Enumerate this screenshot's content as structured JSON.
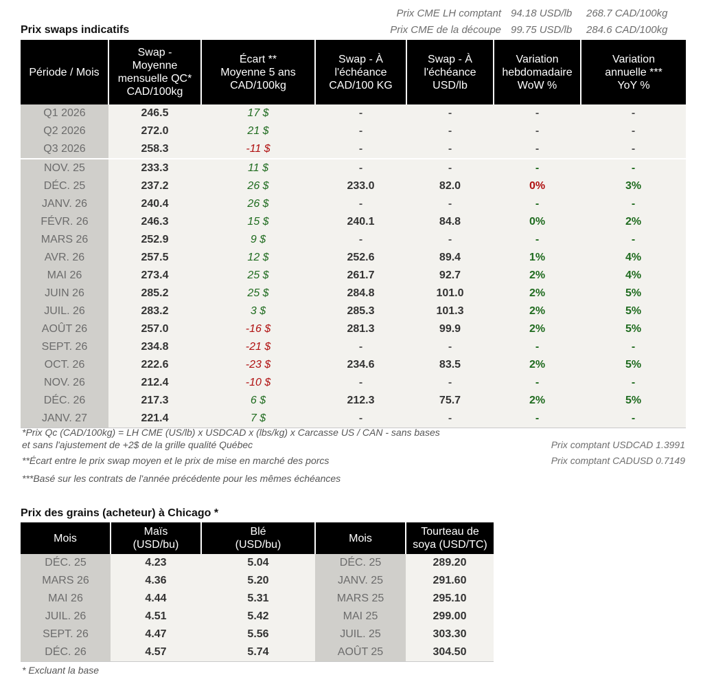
{
  "cme": [
    {
      "label": "Prix CME LH comptant",
      "usd": "94.18 USD/lb",
      "cad": "268.7 CAD/100kg"
    },
    {
      "label": "Prix CME de la découpe",
      "usd": "99.75 USD/lb",
      "cad": "284.6 CAD/100kg"
    }
  ],
  "swaps": {
    "title": "Prix swaps indicatifs",
    "headers": [
      "Période / Mois",
      "Swap -\nMoyenne\nmensuelle QC*\nCAD/100kg",
      "Écart **\nMoyenne 5 ans\nCAD/100kg",
      "Swap - À\nl'échéance\nCAD/100 KG",
      "Swap - À\nl'échéance\nUSD/lb",
      "Variation\nhebdomadaire\nWoW %",
      "Variation\nannuelle ***\nYoY %"
    ],
    "rows": [
      {
        "period": "Q1 2026",
        "swap": "246.5",
        "ecart": "17 $",
        "ecart_sign": "pos",
        "cad": "-",
        "usd": "-",
        "wow": "-",
        "wow_c": "dash",
        "yoy": "-",
        "yoy_c": "dash"
      },
      {
        "period": "Q2 2026",
        "swap": "272.0",
        "ecart": "21 $",
        "ecart_sign": "pos",
        "cad": "-",
        "usd": "-",
        "wow": "-",
        "wow_c": "dash",
        "yoy": "-",
        "yoy_c": "dash"
      },
      {
        "period": "Q3 2026",
        "swap": "258.3",
        "ecart": "-11 $",
        "ecart_sign": "neg",
        "cad": "-",
        "usd": "-",
        "wow": "-",
        "wow_c": "dash",
        "yoy": "-",
        "yoy_c": "dash"
      },
      {
        "period": "NOV. 25",
        "swap": "233.3",
        "ecart": "11 $",
        "ecart_sign": "pos",
        "cad": "-",
        "usd": "-",
        "wow": "-",
        "wow_c": "gdash",
        "yoy": "-",
        "yoy_c": "gdash",
        "sep": true
      },
      {
        "period": "DÉC. 25",
        "swap": "237.2",
        "ecart": "26 $",
        "ecart_sign": "pos",
        "cad": "233.0",
        "usd": "82.0",
        "wow": "0%",
        "wow_c": "neg",
        "yoy": "3%",
        "yoy_c": "pos"
      },
      {
        "period": "JANV. 26",
        "swap": "240.4",
        "ecart": "26 $",
        "ecart_sign": "pos",
        "cad": "-",
        "usd": "-",
        "wow": "-",
        "wow_c": "gdash",
        "yoy": "-",
        "yoy_c": "gdash"
      },
      {
        "period": "FÉVR. 26",
        "swap": "246.3",
        "ecart": "15 $",
        "ecart_sign": "pos",
        "cad": "240.1",
        "usd": "84.8",
        "wow": "0%",
        "wow_c": "pos",
        "yoy": "2%",
        "yoy_c": "pos"
      },
      {
        "period": "MARS 26",
        "swap": "252.9",
        "ecart": "9 $",
        "ecart_sign": "pos",
        "cad": "-",
        "usd": "-",
        "wow": "-",
        "wow_c": "gdash",
        "yoy": "-",
        "yoy_c": "gdash"
      },
      {
        "period": "AVR. 26",
        "swap": "257.5",
        "ecart": "12 $",
        "ecart_sign": "pos",
        "cad": "252.6",
        "usd": "89.4",
        "wow": "1%",
        "wow_c": "pos",
        "yoy": "4%",
        "yoy_c": "pos"
      },
      {
        "period": "MAI 26",
        "swap": "273.4",
        "ecart": "25 $",
        "ecart_sign": "pos",
        "cad": "261.7",
        "usd": "92.7",
        "wow": "2%",
        "wow_c": "pos",
        "yoy": "4%",
        "yoy_c": "pos"
      },
      {
        "period": "JUIN 26",
        "swap": "285.2",
        "ecart": "25 $",
        "ecart_sign": "pos",
        "cad": "284.8",
        "usd": "101.0",
        "wow": "2%",
        "wow_c": "pos",
        "yoy": "5%",
        "yoy_c": "pos"
      },
      {
        "period": "JUIL. 26",
        "swap": "283.2",
        "ecart": "3 $",
        "ecart_sign": "pos",
        "cad": "285.3",
        "usd": "101.3",
        "wow": "2%",
        "wow_c": "pos",
        "yoy": "5%",
        "yoy_c": "pos"
      },
      {
        "period": "AOÛT 26",
        "swap": "257.0",
        "ecart": "-16 $",
        "ecart_sign": "neg",
        "cad": "281.3",
        "usd": "99.9",
        "wow": "2%",
        "wow_c": "pos",
        "yoy": "5%",
        "yoy_c": "pos"
      },
      {
        "period": "SEPT. 26",
        "swap": "234.8",
        "ecart": "-21 $",
        "ecart_sign": "neg",
        "cad": "-",
        "usd": "-",
        "wow": "-",
        "wow_c": "gdash",
        "yoy": "-",
        "yoy_c": "gdash"
      },
      {
        "period": "OCT. 26",
        "swap": "222.6",
        "ecart": "-23 $",
        "ecart_sign": "neg",
        "cad": "234.6",
        "usd": "83.5",
        "wow": "2%",
        "wow_c": "pos",
        "yoy": "5%",
        "yoy_c": "pos"
      },
      {
        "period": "NOV. 26",
        "swap": "212.4",
        "ecart": "-10 $",
        "ecart_sign": "neg",
        "cad": "-",
        "usd": "-",
        "wow": "-",
        "wow_c": "gdash",
        "yoy": "-",
        "yoy_c": "gdash"
      },
      {
        "period": "DÉC. 26",
        "swap": "217.3",
        "ecart": "6 $",
        "ecart_sign": "pos",
        "cad": "212.3",
        "usd": "75.7",
        "wow": "2%",
        "wow_c": "pos",
        "yoy": "5%",
        "yoy_c": "pos"
      },
      {
        "period": "JANV. 27",
        "swap": "221.4",
        "ecart": "7 $",
        "ecart_sign": "pos",
        "cad": "-",
        "usd": "-",
        "wow": "-",
        "wow_c": "gdash",
        "yoy": "-",
        "yoy_c": "gdash"
      }
    ]
  },
  "notes": {
    "n1a": "*Prix Qc (CAD/100kg) = LH CME (US/lb) x USDCAD x (lbs/kg) x Carcasse US / CAN - sans bases",
    "n1b": "et sans l'ajustement de +2$ de la grille qualité Québec",
    "n2": "**Écart entre le prix swap moyen et le prix de mise en marché des porcs",
    "n3": "***Basé sur les contrats de l'année précédente pour les mêmes échéances",
    "fx1": "Prix comptant USDCAD 1.3991",
    "fx2": "Prix comptant CADUSD 0.7149"
  },
  "grains": {
    "title": "Prix des grains (acheteur) à Chicago *",
    "headers": [
      "Mois",
      "Maïs\n(USD/bu)",
      "Blé\n(USD/bu)",
      "Mois",
      "Tourteau de\nsoya (USD/TC)"
    ],
    "rows": [
      {
        "m1": "DÉC. 25",
        "mais": "4.23",
        "ble": "5.04",
        "m2": "DÉC. 25",
        "soya": "289.20"
      },
      {
        "m1": "MARS 26",
        "mais": "4.36",
        "ble": "5.20",
        "m2": "JANV. 25",
        "soya": "291.60"
      },
      {
        "m1": "MAI 26",
        "mais": "4.44",
        "ble": "5.31",
        "m2": "MARS 25",
        "soya": "295.10"
      },
      {
        "m1": "JUIL. 26",
        "mais": "4.51",
        "ble": "5.42",
        "m2": "MAI 25",
        "soya": "299.00"
      },
      {
        "m1": "SEPT. 26",
        "mais": "4.47",
        "ble": "5.56",
        "m2": "JUIL. 25",
        "soya": "303.30"
      },
      {
        "m1": "DÉC. 26",
        "mais": "4.57",
        "ble": "5.74",
        "m2": "AOÛT 25",
        "soya": "304.50"
      }
    ],
    "footnote": "* Excluant la base"
  }
}
